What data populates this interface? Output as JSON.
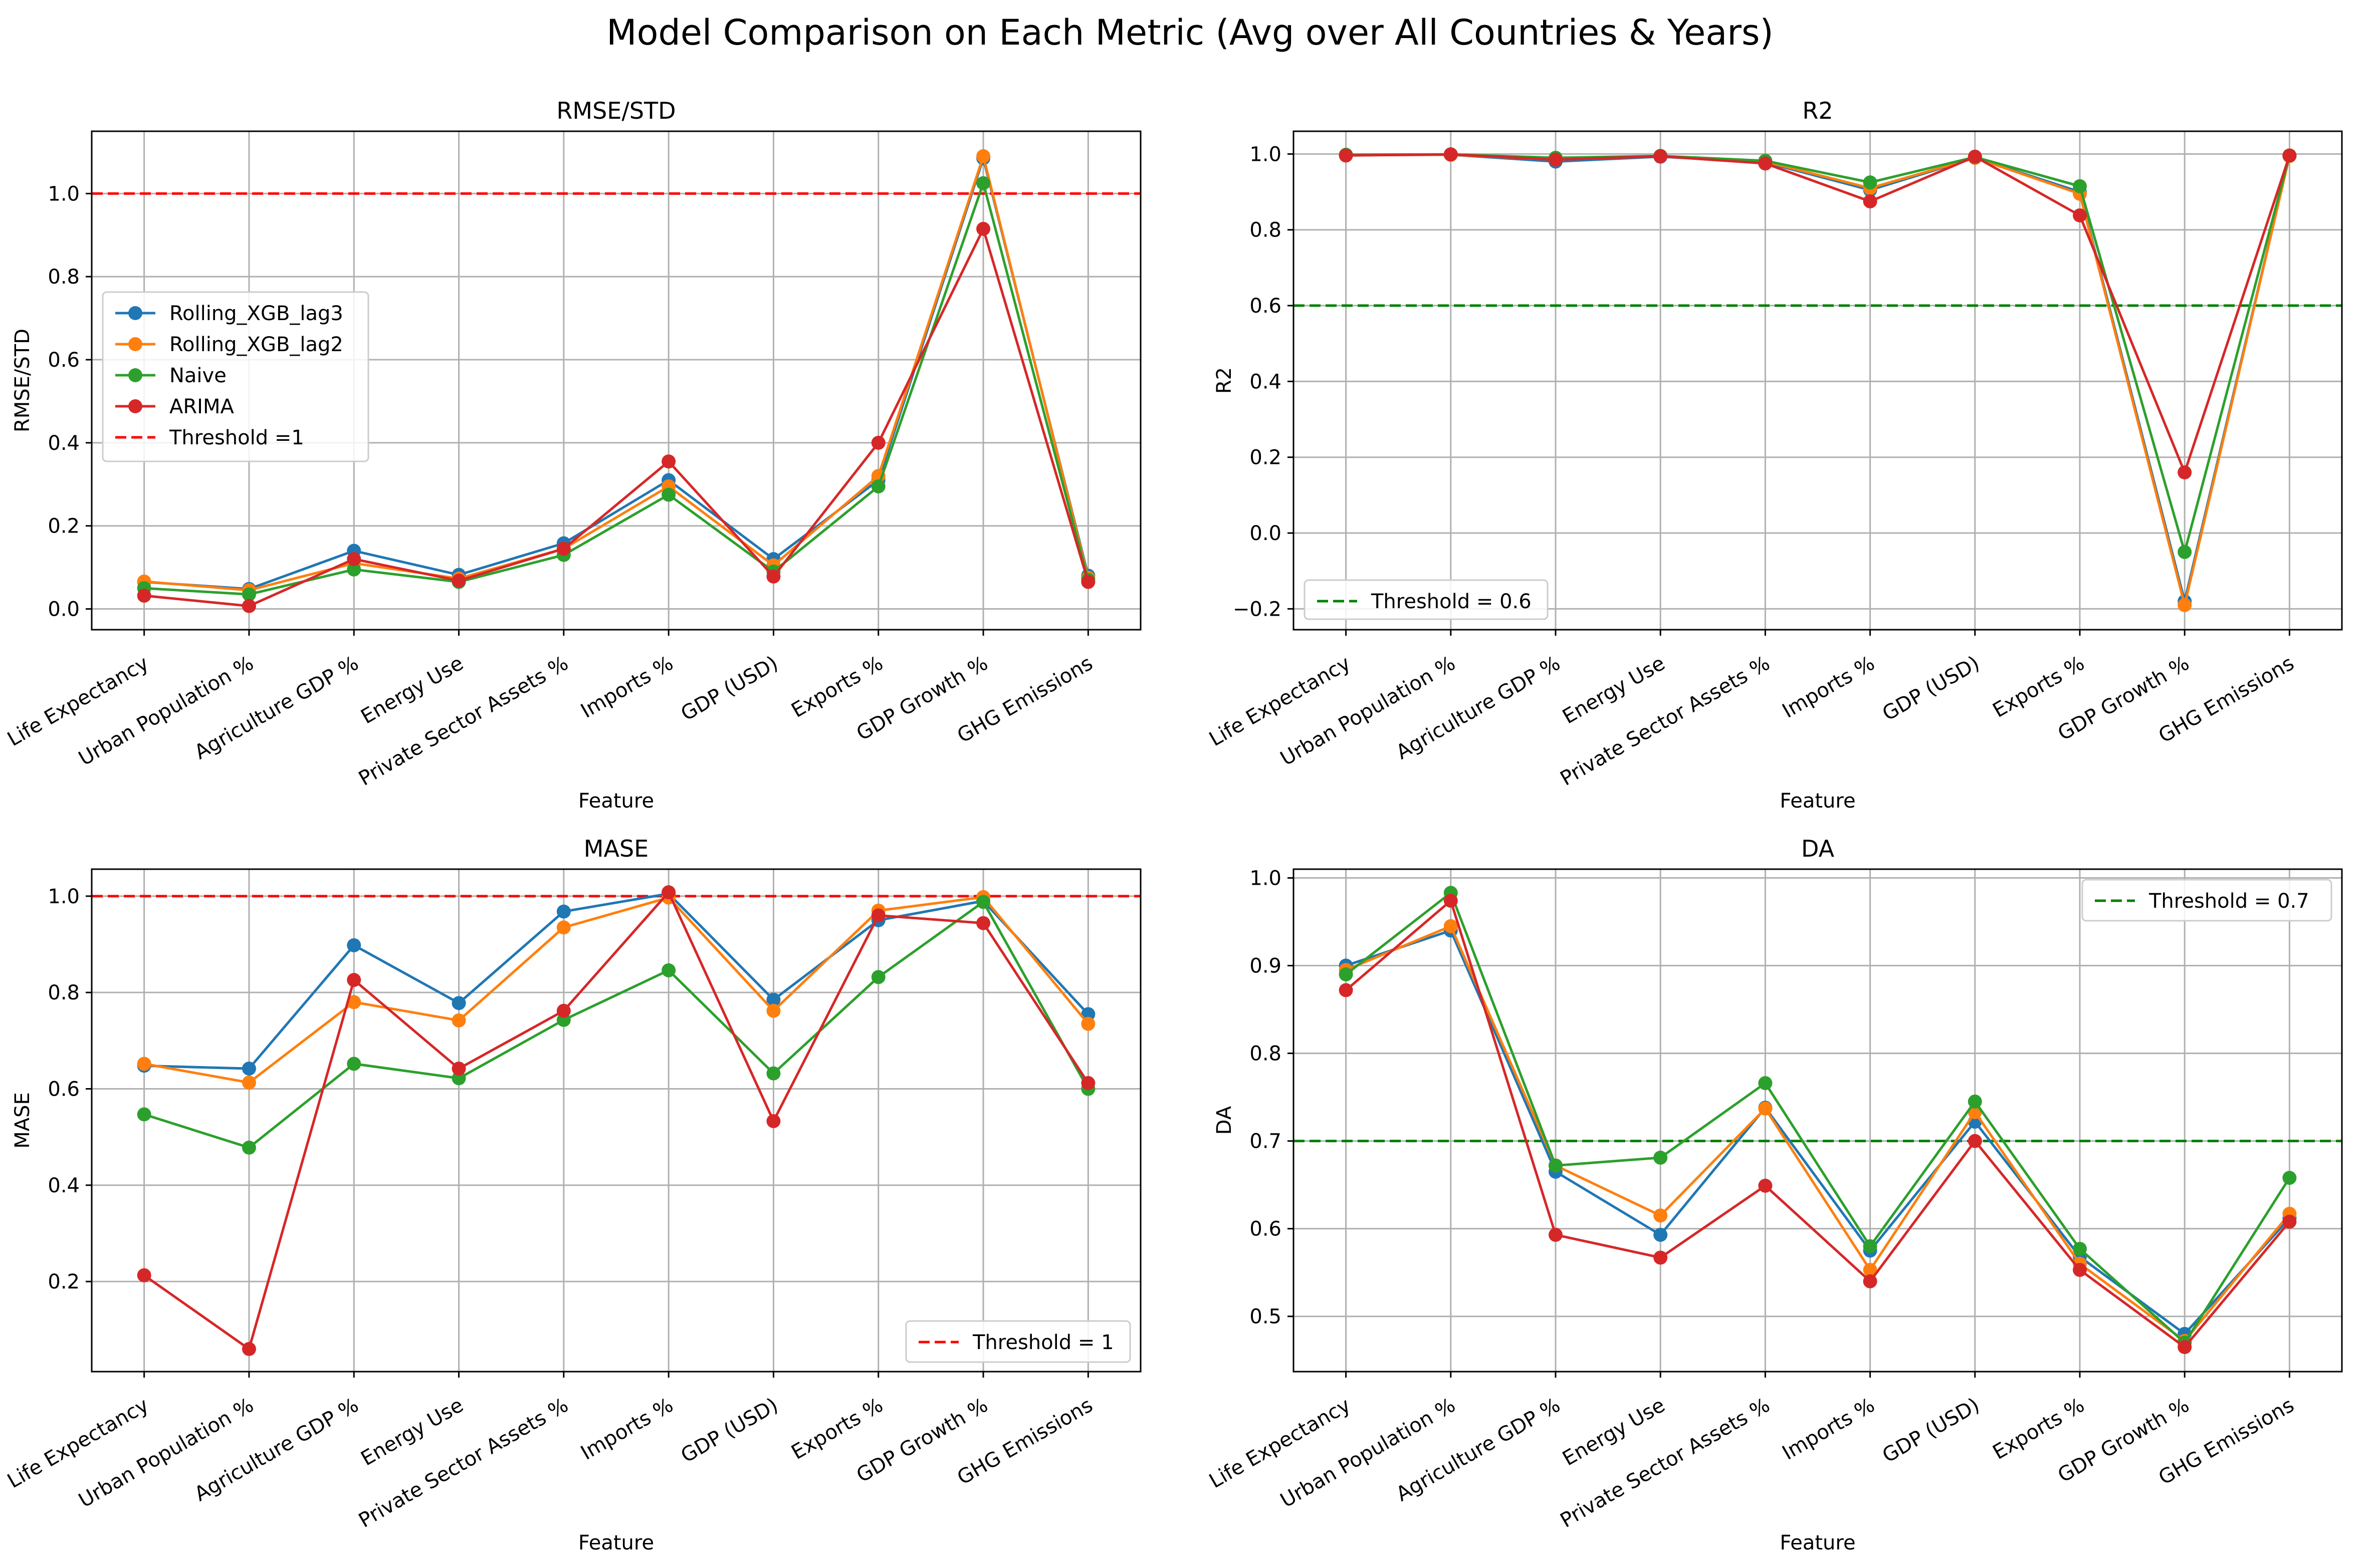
{
  "figure": {
    "suptitle": "Model Comparison on Each Metric (Avg over All Countries & Years)"
  },
  "colors": {
    "Rolling_XGB_lag3": "#1f77b4",
    "Rolling_XGB_lag2": "#ff7f0e",
    "Naive": "#2ca02c",
    "ARIMA": "#d62728",
    "threshold_red": "#ff0000",
    "threshold_green": "#008000",
    "grid": "#b0b0b0"
  },
  "chart_data": [
    {
      "type": "line",
      "title": "RMSE/STD",
      "xlabel": "Feature",
      "ylabel": "RMSE/STD",
      "categories": [
        "Life Expectancy",
        "Urban Population %",
        "Agriculture GDP %",
        "Energy Use",
        "Private Sector Assets %",
        "Imports %",
        "GDP (USD)",
        "Exports %",
        "GDP Growth %",
        "GHG Emissions"
      ],
      "ylim": [
        -0.05,
        1.15
      ],
      "yticks": [
        0.0,
        0.2,
        0.4,
        0.6,
        0.8,
        1.0
      ],
      "ytick_labels": [
        "0.0",
        "0.2",
        "0.4",
        "0.6",
        "0.8",
        "1.0"
      ],
      "grid": true,
      "legend_position": "center-left",
      "series": [
        {
          "name": "Rolling_XGB_lag3",
          "values": [
            0.065,
            0.048,
            0.14,
            0.082,
            0.158,
            0.31,
            0.12,
            0.31,
            1.085,
            0.08
          ]
        },
        {
          "name": "Rolling_XGB_lag2",
          "values": [
            0.066,
            0.045,
            0.11,
            0.073,
            0.145,
            0.295,
            0.105,
            0.32,
            1.09,
            0.075
          ]
        },
        {
          "name": "Naive",
          "values": [
            0.05,
            0.035,
            0.095,
            0.065,
            0.13,
            0.275,
            0.09,
            0.295,
            1.025,
            0.07
          ]
        },
        {
          "name": "ARIMA",
          "values": [
            0.032,
            0.007,
            0.12,
            0.068,
            0.145,
            0.355,
            0.078,
            0.4,
            0.915,
            0.065
          ]
        }
      ],
      "thresholds": [
        {
          "label": "Threshold =1",
          "value": 1.0,
          "color": "#ff0000"
        }
      ]
    },
    {
      "type": "line",
      "title": "R2",
      "xlabel": "Feature",
      "ylabel": "R2",
      "categories": [
        "Life Expectancy",
        "Urban Population %",
        "Agriculture GDP %",
        "Energy Use",
        "Private Sector Assets %",
        "Imports %",
        "GDP (USD)",
        "Exports %",
        "GDP Growth %",
        "GHG Emissions"
      ],
      "ylim": [
        -0.255,
        1.06
      ],
      "yticks": [
        -0.2,
        0.0,
        0.2,
        0.4,
        0.6,
        0.8,
        1.0
      ],
      "ytick_labels": [
        "−0.2",
        "0.0",
        "0.2",
        "0.4",
        "0.6",
        "0.8",
        "1.0"
      ],
      "grid": true,
      "legend_position": "lower-left",
      "series": [
        {
          "name": "Rolling_XGB_lag3",
          "values": [
            0.997,
            0.998,
            0.98,
            0.993,
            0.978,
            0.905,
            0.99,
            0.9,
            -0.18,
            0.995
          ]
        },
        {
          "name": "Rolling_XGB_lag2",
          "values": [
            0.997,
            0.998,
            0.985,
            0.994,
            0.98,
            0.91,
            0.99,
            0.895,
            -0.19,
            0.995
          ]
        },
        {
          "name": "Naive",
          "values": [
            0.998,
            0.999,
            0.99,
            0.995,
            0.982,
            0.925,
            0.992,
            0.915,
            -0.05,
            0.996
          ]
        },
        {
          "name": "ARIMA",
          "values": [
            0.996,
            0.999,
            0.985,
            0.994,
            0.975,
            0.875,
            0.993,
            0.838,
            0.16,
            0.996
          ]
        }
      ],
      "thresholds": [
        {
          "label": "Threshold = 0.6",
          "value": 0.6,
          "color": "#008000"
        }
      ]
    },
    {
      "type": "line",
      "title": "MASE",
      "xlabel": "Feature",
      "ylabel": "MASE",
      "categories": [
        "Life Expectancy",
        "Urban Population %",
        "Agriculture GDP %",
        "Energy Use",
        "Private Sector Assets %",
        "Imports %",
        "GDP (USD)",
        "Exports %",
        "GDP Growth %",
        "GHG Emissions"
      ],
      "ylim": [
        0.013,
        1.056
      ],
      "yticks": [
        0.2,
        0.4,
        0.6,
        0.8,
        1.0
      ],
      "ytick_labels": [
        "0.2",
        "0.4",
        "0.6",
        "0.8",
        "1.0"
      ],
      "grid": true,
      "legend_position": "lower-right",
      "series": [
        {
          "name": "Rolling_XGB_lag3",
          "values": [
            0.648,
            0.642,
            0.898,
            0.778,
            0.968,
            1.005,
            0.785,
            0.95,
            0.99,
            0.755
          ]
        },
        {
          "name": "Rolling_XGB_lag2",
          "values": [
            0.652,
            0.613,
            0.78,
            0.742,
            0.935,
            0.997,
            0.762,
            0.97,
            0.998,
            0.735
          ]
        },
        {
          "name": "Naive",
          "values": [
            0.547,
            0.478,
            0.652,
            0.622,
            0.743,
            0.846,
            0.632,
            0.832,
            0.988,
            0.6
          ]
        },
        {
          "name": "ARIMA",
          "values": [
            0.213,
            0.06,
            0.826,
            0.642,
            0.762,
            1.008,
            0.533,
            0.96,
            0.944,
            0.612
          ]
        }
      ],
      "thresholds": [
        {
          "label": "Threshold = 1",
          "value": 1.0,
          "color": "#ff0000"
        }
      ]
    },
    {
      "type": "line",
      "title": "DA",
      "xlabel": "Feature",
      "ylabel": "DA",
      "categories": [
        "Life Expectancy",
        "Urban Population %",
        "Agriculture GDP %",
        "Energy Use",
        "Private Sector Assets %",
        "Imports %",
        "GDP (USD)",
        "Exports %",
        "GDP Growth %",
        "GHG Emissions"
      ],
      "ylim": [
        0.437,
        1.01
      ],
      "yticks": [
        0.5,
        0.6,
        0.7,
        0.8,
        0.9,
        1.0
      ],
      "ytick_labels": [
        "0.5",
        "0.6",
        "0.7",
        "0.8",
        "0.9",
        "1.0"
      ],
      "grid": true,
      "legend_position": "upper-right",
      "series": [
        {
          "name": "Rolling_XGB_lag3",
          "values": [
            0.9,
            0.94,
            0.665,
            0.593,
            0.738,
            0.575,
            0.722,
            0.568,
            0.48,
            0.612
          ]
        },
        {
          "name": "Rolling_XGB_lag2",
          "values": [
            0.895,
            0.945,
            0.672,
            0.615,
            0.737,
            0.553,
            0.733,
            0.56,
            0.472,
            0.617
          ]
        },
        {
          "name": "Naive",
          "values": [
            0.89,
            0.983,
            0.672,
            0.681,
            0.766,
            0.58,
            0.745,
            0.577,
            0.47,
            0.658
          ]
        },
        {
          "name": "ARIMA",
          "values": [
            0.872,
            0.974,
            0.593,
            0.567,
            0.649,
            0.54,
            0.7,
            0.553,
            0.465,
            0.608
          ]
        }
      ],
      "thresholds": [
        {
          "label": "Threshold = 0.7",
          "value": 0.7,
          "color": "#008000"
        }
      ]
    }
  ]
}
